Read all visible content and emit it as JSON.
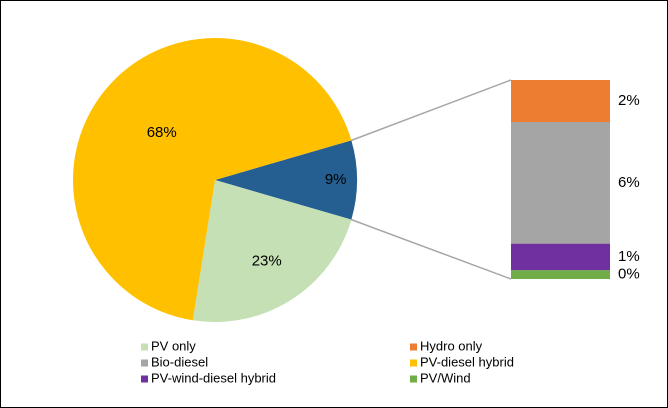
{
  "chart_data": {
    "type": "barofpie",
    "pie": {
      "categories": [
        "PV-diesel hybrid",
        "PV only",
        null
      ],
      "values": [
        68,
        23,
        9
      ],
      "value_labels": [
        "68%",
        "23%",
        "9%"
      ],
      "colors": [
        "#ffc000",
        "#c5e0b4",
        "#255e91"
      ]
    },
    "bar": {
      "categories": [
        "Hydro only",
        "Bio-diesel",
        "PV-wind-diesel hybrid",
        "PV/Wind"
      ],
      "values": [
        1.9,
        5.5,
        1.2,
        0.4
      ],
      "value_labels": [
        "2%",
        "6%",
        "1%",
        "0%"
      ],
      "colors": [
        "#ed7d31",
        "#a5a5a5",
        "#7030a0",
        "#70ad47"
      ]
    }
  }
}
